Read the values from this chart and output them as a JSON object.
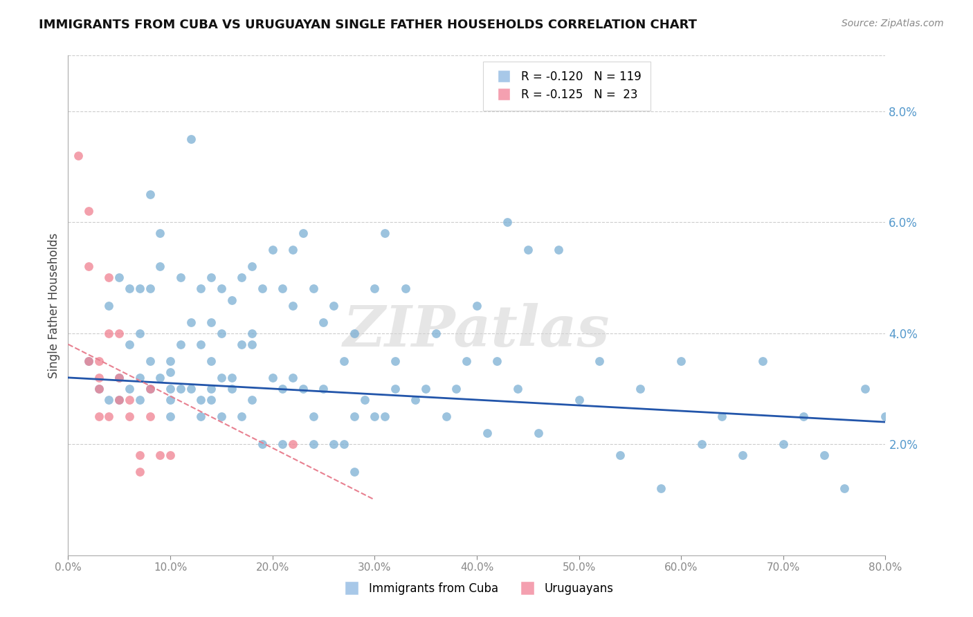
{
  "title": "IMMIGRANTS FROM CUBA VS URUGUAYAN SINGLE FATHER HOUSEHOLDS CORRELATION CHART",
  "source": "Source: ZipAtlas.com",
  "ylabel": "Single Father Households",
  "xlim": [
    0,
    0.8
  ],
  "ylim": [
    0,
    0.09
  ],
  "yticks_right": [
    0.02,
    0.04,
    0.06,
    0.08
  ],
  "ytick_labels_right": [
    "2.0%",
    "4.0%",
    "6.0%",
    "8.0%"
  ],
  "xticks": [
    0.0,
    0.1,
    0.2,
    0.3,
    0.4,
    0.5,
    0.6,
    0.7,
    0.8
  ],
  "xtick_labels": [
    "0.0%",
    "10.0%",
    "20.0%",
    "30.0%",
    "40.0%",
    "50.0%",
    "60.0%",
    "70.0%",
    "80.0%"
  ],
  "blue_color": "#7bafd4",
  "pink_color": "#f08090",
  "blue_line_color": "#2255aa",
  "pink_line_color": "#e88090",
  "grid_color": "#cccccc",
  "watermark": "ZIPatlas",
  "blue_x": [
    0.02,
    0.03,
    0.04,
    0.04,
    0.05,
    0.05,
    0.05,
    0.06,
    0.06,
    0.06,
    0.07,
    0.07,
    0.07,
    0.07,
    0.08,
    0.08,
    0.08,
    0.08,
    0.09,
    0.09,
    0.1,
    0.1,
    0.1,
    0.1,
    0.1,
    0.11,
    0.11,
    0.11,
    0.12,
    0.12,
    0.12,
    0.13,
    0.13,
    0.13,
    0.14,
    0.14,
    0.14,
    0.14,
    0.15,
    0.15,
    0.15,
    0.16,
    0.16,
    0.17,
    0.17,
    0.18,
    0.18,
    0.18,
    0.19,
    0.2,
    0.2,
    0.21,
    0.21,
    0.22,
    0.22,
    0.23,
    0.23,
    0.24,
    0.24,
    0.25,
    0.25,
    0.26,
    0.27,
    0.28,
    0.28,
    0.3,
    0.31,
    0.31,
    0.32,
    0.33,
    0.34,
    0.35,
    0.36,
    0.37,
    0.38,
    0.39,
    0.4,
    0.41,
    0.42,
    0.43,
    0.44,
    0.45,
    0.46,
    0.48,
    0.5,
    0.52,
    0.54,
    0.56,
    0.58,
    0.6,
    0.62,
    0.64,
    0.66,
    0.68,
    0.7,
    0.72,
    0.74,
    0.76,
    0.78,
    0.8,
    0.09,
    0.13,
    0.14,
    0.15,
    0.16,
    0.17,
    0.18,
    0.19,
    0.21,
    0.22,
    0.24,
    0.26,
    0.27,
    0.28,
    0.29,
    0.3,
    0.32,
    0.34,
    0.36
  ],
  "blue_y": [
    0.035,
    0.03,
    0.045,
    0.028,
    0.05,
    0.032,
    0.028,
    0.048,
    0.038,
    0.03,
    0.048,
    0.04,
    0.032,
    0.028,
    0.065,
    0.048,
    0.035,
    0.03,
    0.058,
    0.052,
    0.035,
    0.033,
    0.03,
    0.028,
    0.025,
    0.05,
    0.038,
    0.03,
    0.075,
    0.042,
    0.03,
    0.048,
    0.038,
    0.028,
    0.05,
    0.042,
    0.035,
    0.028,
    0.048,
    0.04,
    0.032,
    0.046,
    0.03,
    0.05,
    0.038,
    0.052,
    0.04,
    0.028,
    0.048,
    0.055,
    0.032,
    0.048,
    0.03,
    0.055,
    0.032,
    0.058,
    0.03,
    0.048,
    0.025,
    0.042,
    0.03,
    0.045,
    0.035,
    0.04,
    0.025,
    0.048,
    0.058,
    0.025,
    0.035,
    0.048,
    0.028,
    0.03,
    0.04,
    0.025,
    0.03,
    0.035,
    0.045,
    0.022,
    0.035,
    0.06,
    0.03,
    0.055,
    0.022,
    0.055,
    0.028,
    0.035,
    0.018,
    0.03,
    0.012,
    0.035,
    0.02,
    0.025,
    0.018,
    0.035,
    0.02,
    0.025,
    0.018,
    0.012,
    0.03,
    0.025,
    0.032,
    0.025,
    0.03,
    0.025,
    0.032,
    0.025,
    0.038,
    0.02,
    0.02,
    0.045,
    0.02,
    0.02,
    0.02,
    0.015,
    0.028,
    0.025,
    0.03
  ],
  "pink_x": [
    0.01,
    0.02,
    0.02,
    0.02,
    0.03,
    0.03,
    0.03,
    0.03,
    0.04,
    0.04,
    0.04,
    0.05,
    0.05,
    0.05,
    0.06,
    0.06,
    0.07,
    0.07,
    0.08,
    0.08,
    0.09,
    0.1,
    0.22
  ],
  "pink_y": [
    0.072,
    0.062,
    0.052,
    0.035,
    0.035,
    0.032,
    0.03,
    0.025,
    0.05,
    0.04,
    0.025,
    0.04,
    0.032,
    0.028,
    0.028,
    0.025,
    0.018,
    0.015,
    0.03,
    0.025,
    0.018,
    0.018,
    0.02
  ],
  "blue_trend_x": [
    0.0,
    0.8
  ],
  "blue_trend_y": [
    0.032,
    0.024
  ],
  "pink_trend_x": [
    0.0,
    0.3
  ],
  "pink_trend_y": [
    0.038,
    0.01
  ]
}
